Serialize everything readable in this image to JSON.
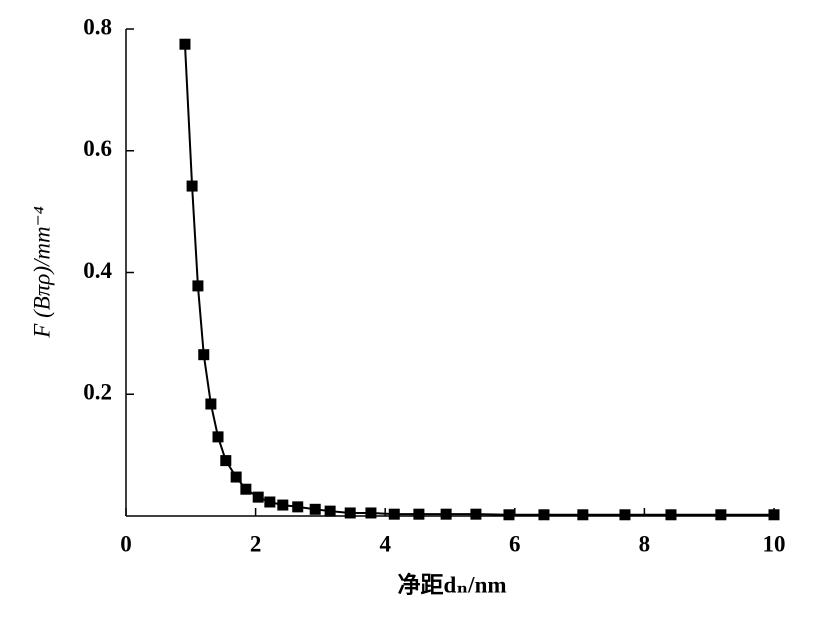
{
  "chart_data": {
    "type": "line",
    "x_label": "净距dₙ/nm",
    "y_label": "F (Bπρ)/mm⁻⁴",
    "x": [
      0.91,
      1.02,
      1.11,
      1.2,
      1.31,
      1.42,
      1.54,
      1.7,
      1.85,
      2.04,
      2.22,
      2.42,
      2.65,
      2.92,
      3.15,
      3.46,
      3.78,
      4.14,
      4.52,
      4.94,
      5.4,
      5.91,
      6.45,
      7.05,
      7.7,
      8.41,
      9.18,
      10.0
    ],
    "series": [
      {
        "color": "#000000",
        "values": [
          0.775,
          0.542,
          0.378,
          0.265,
          0.184,
          0.13,
          0.091,
          0.064,
          0.044,
          0.031,
          0.023,
          0.018,
          0.015,
          0.011,
          0.008,
          0.005,
          0.005,
          0.003,
          0.003,
          0.003,
          0.003,
          0.002,
          0.002,
          0.002,
          0.002,
          0.002,
          0.002,
          0.002
        ]
      }
    ],
    "xlim": [
      0,
      10
    ],
    "ylim": [
      0,
      0.8
    ],
    "xticks": [
      0,
      2,
      4,
      6,
      8,
      10
    ],
    "yticks": [
      0.2,
      0.4,
      0.6,
      0.8
    ],
    "marker": "square"
  }
}
